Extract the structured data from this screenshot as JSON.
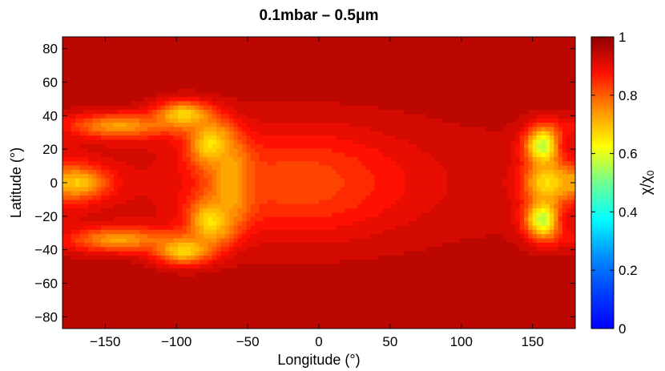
{
  "chart_data": {
    "type": "heatmap",
    "title": "0.1mbar – 0.5μm",
    "xlabel": "Longitude (°)",
    "ylabel": "Latitude (°)",
    "xlim": [
      -180,
      180
    ],
    "ylim": [
      -87,
      87
    ],
    "xticks": [
      -150,
      -100,
      -50,
      0,
      50,
      100,
      150
    ],
    "xtick_labels": [
      "−150",
      "−100",
      "−50",
      "0",
      "50",
      "100",
      "150"
    ],
    "yticks": [
      80,
      60,
      40,
      20,
      0,
      -20,
      -40,
      -60,
      -80
    ],
    "ytick_labels": [
      "80",
      "60",
      "40",
      "20",
      "0",
      "−20",
      "−40",
      "−60",
      "−80"
    ],
    "colorbar": {
      "label": "χ/χ",
      "label_subscript": "0",
      "range": [
        0,
        1
      ],
      "ticks": [
        0,
        0.2,
        0.4,
        0.6,
        0.8,
        1
      ],
      "tick_labels": [
        "0",
        "0.2",
        "0.4",
        "0.6",
        "0.8",
        "1"
      ],
      "colormap": "jet"
    },
    "grid": false,
    "features": [
      {
        "lon": -180,
        "lat": 0,
        "sigma_lon": 22,
        "sigma_lat": 10,
        "value": 0.78
      },
      {
        "lon": -168,
        "lat": 0,
        "sigma_lon": 12,
        "sigma_lat": 5,
        "value": 0.68
      },
      {
        "lon": -125,
        "lat": 26,
        "sigma_lon": 28,
        "sigma_lat": 6,
        "value": 0.92
      },
      {
        "lon": -125,
        "lat": -28,
        "sigma_lon": 28,
        "sigma_lat": 6,
        "value": 0.92
      },
      {
        "lon": -60,
        "lat": 0,
        "sigma_lon": 10,
        "sigma_lat": 14,
        "value": 0.45
      },
      {
        "lon": -75,
        "lat": 22,
        "sigma_lon": 11,
        "sigma_lat": 10,
        "value": 0.58
      },
      {
        "lon": -75,
        "lat": -22,
        "sigma_lon": 11,
        "sigma_lat": 10,
        "value": 0.58
      },
      {
        "lon": -95,
        "lat": 40,
        "sigma_lon": 14,
        "sigma_lat": 6,
        "value": 0.65
      },
      {
        "lon": -95,
        "lat": -40,
        "sigma_lon": 14,
        "sigma_lat": 6,
        "value": 0.65
      },
      {
        "lon": -140,
        "lat": 34,
        "sigma_lon": 25,
        "sigma_lat": 5,
        "value": 0.73
      },
      {
        "lon": -140,
        "lat": -34,
        "sigma_lon": 25,
        "sigma_lat": 5,
        "value": 0.73
      },
      {
        "lon": -15,
        "lat": 0,
        "sigma_lon": 55,
        "sigma_lat": 22,
        "value": 0.82
      },
      {
        "lon": 160,
        "lat": 0,
        "sigma_lon": 10,
        "sigma_lat": 7,
        "value": 0.66
      },
      {
        "lon": 158,
        "lat": 22,
        "sigma_lon": 9,
        "sigma_lat": 8,
        "value": 0.55
      },
      {
        "lon": 158,
        "lat": -22,
        "sigma_lon": 9,
        "sigma_lat": 8,
        "value": 0.55
      },
      {
        "lon": 178,
        "lat": 22,
        "sigma_lon": 8,
        "sigma_lat": 6,
        "value": 0.9
      },
      {
        "lon": 178,
        "lat": -22,
        "sigma_lon": 8,
        "sigma_lat": 6,
        "value": 0.9
      }
    ]
  }
}
